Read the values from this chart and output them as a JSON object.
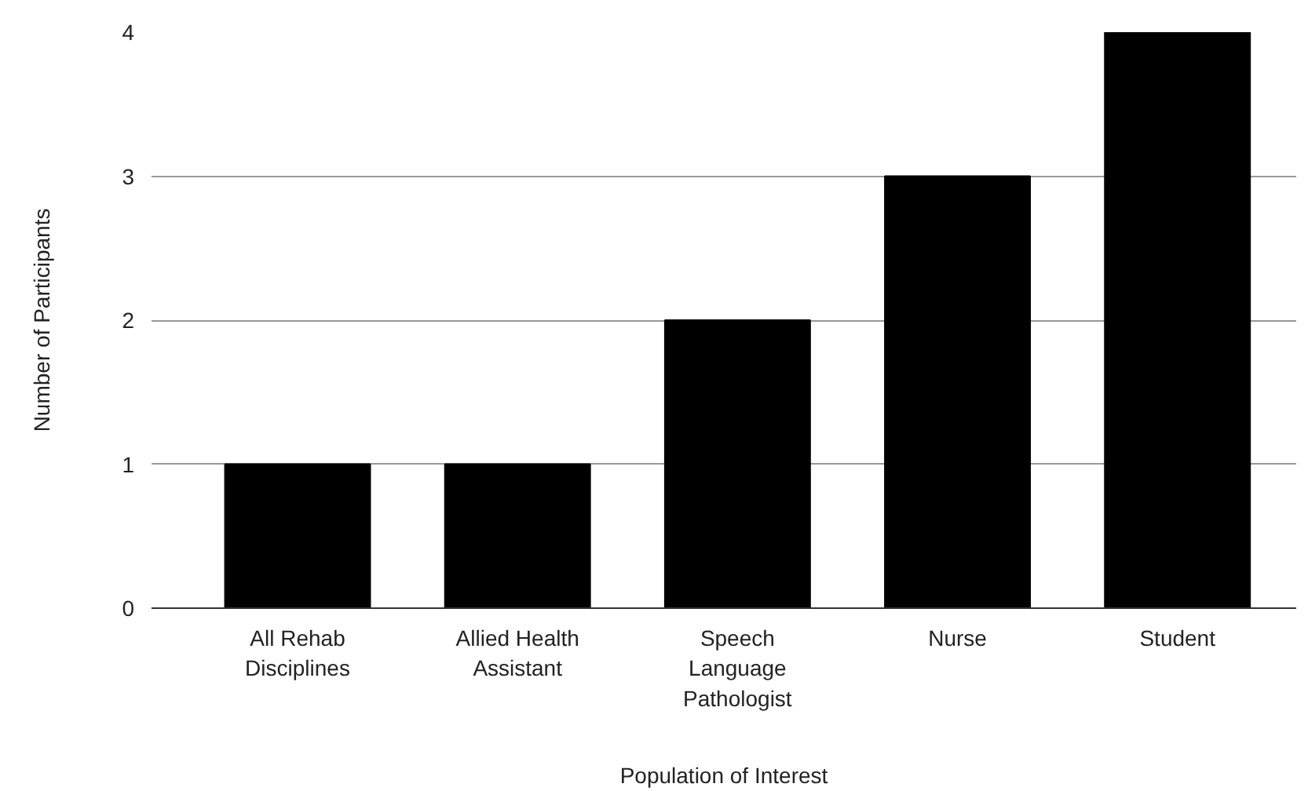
{
  "chart_data": {
    "type": "bar",
    "xlabel": "Population of Interest",
    "ylabel": "Number of Participants",
    "categories": [
      "All Rehab Disciplines",
      "Allied Health Assistant",
      "Speech Language Pathologist",
      "Nurse",
      "Student"
    ],
    "values": [
      1,
      1,
      2,
      3,
      4
    ],
    "color": "#000000",
    "ylim": [
      0,
      4
    ],
    "yticks": [
      0,
      1,
      2,
      3,
      4
    ],
    "grid": "y"
  }
}
